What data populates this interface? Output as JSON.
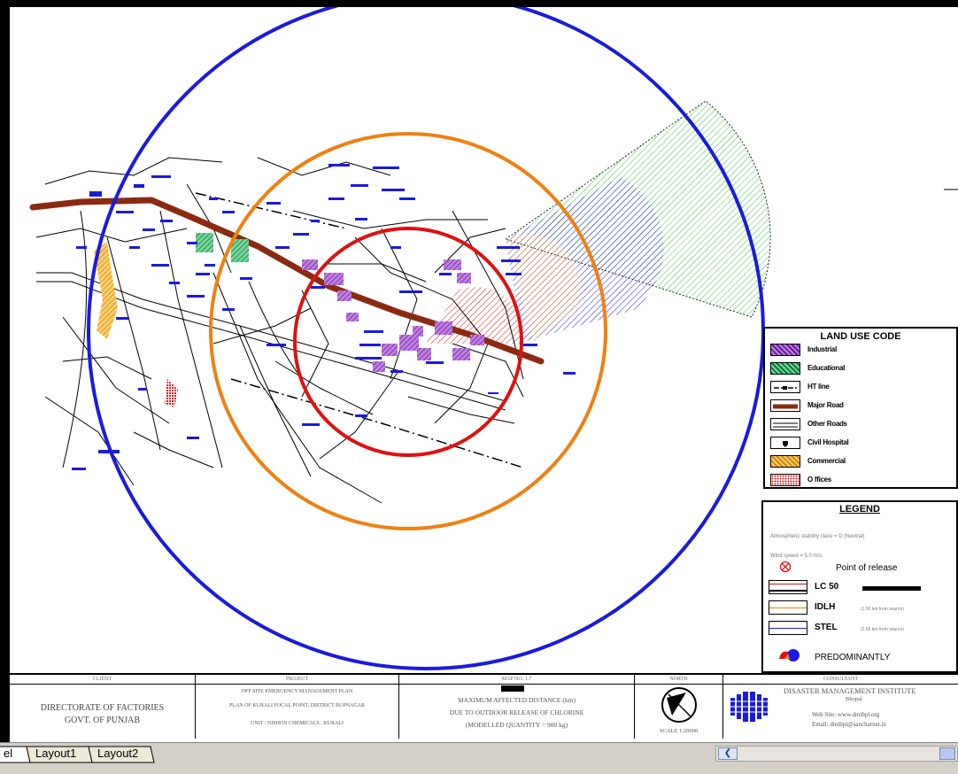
{
  "landuse": {
    "title": "LAND USE CODE",
    "items": [
      {
        "label": "Industrial",
        "icon": "industrial-swatch-icon",
        "color": "#8b2fc9"
      },
      {
        "label": "Educational",
        "icon": "educational-swatch-icon",
        "color": "#1a9a4a"
      },
      {
        "label": "HT line",
        "icon": "ht-line-swatch-icon",
        "color": "#000000"
      },
      {
        "label": "Major Road",
        "icon": "major-road-swatch-icon",
        "color": "#8b2a10"
      },
      {
        "label": "Other Roads",
        "icon": "other-roads-swatch-icon",
        "color": "#000000"
      },
      {
        "label": "Civil Hospital",
        "icon": "civil-hospital-swatch-icon",
        "color": "#000000"
      },
      {
        "label": "Commercial",
        "icon": "commercial-swatch-icon",
        "color": "#f0a020"
      },
      {
        "label": "O ffices",
        "icon": "offices-swatch-icon",
        "color": "#e01010"
      }
    ]
  },
  "legend": {
    "title": "LEGEND",
    "stability": "Atmospheric stability class = D (Neutral)",
    "wind": "Wind speed = 5.0 m/s",
    "release_label": "Point of release",
    "lc50_label": "LC 50",
    "idlh_label": "IDLH",
    "idlh_note": "(1.50 km from source)",
    "stel_label": "STEL",
    "stel_note": "(2.65 km from source)",
    "predominantly_label": "PREDOMINANTLY",
    "colors": {
      "lc50": "#e01010",
      "idlh": "#f08010",
      "stel": "#1a1ae0",
      "wind_cone": "#3cc83c"
    }
  },
  "titleblock": {
    "client_header": "CLIENT",
    "client_line1": "DIRECTORATE OF FACTORIES",
    "client_line2": "GOVT. OF PUNJAB",
    "project_header": "PROJECT",
    "project_line1": "OFF SITE EMERGENCY MANAGEMENT PLAN",
    "project_line2": "PLAN OF KURALI FOCAL POINT, DISTRICT RUPNAGAR",
    "project_line3": "UNIT : NISHON CHEMICALS , KURALI",
    "map_header": "MAP NO. 1.7",
    "map_line1": "MAXIMUM AFFECTED DISTANCE (km)",
    "map_line2": "DUE TO OUTDOOR RELEASE OF CHLORINE",
    "map_line3": "(MODELLED QUANTITY = 900 kg)",
    "north_header": "NORTH",
    "scale": "SCALE 1:20000",
    "consultant_header": "CONSULTANT",
    "consultant_line1": "DISASTER MANAGEMENT INSTITUTE",
    "consultant_line2": "Bhopal",
    "consultant_line3": "Web Site: www.dmibpl.org",
    "consultant_line4": "Email: dmibpl@sancharnet.in"
  },
  "tabs": {
    "model": "el",
    "layout1": "Layout1",
    "layout2": "Layout2"
  }
}
